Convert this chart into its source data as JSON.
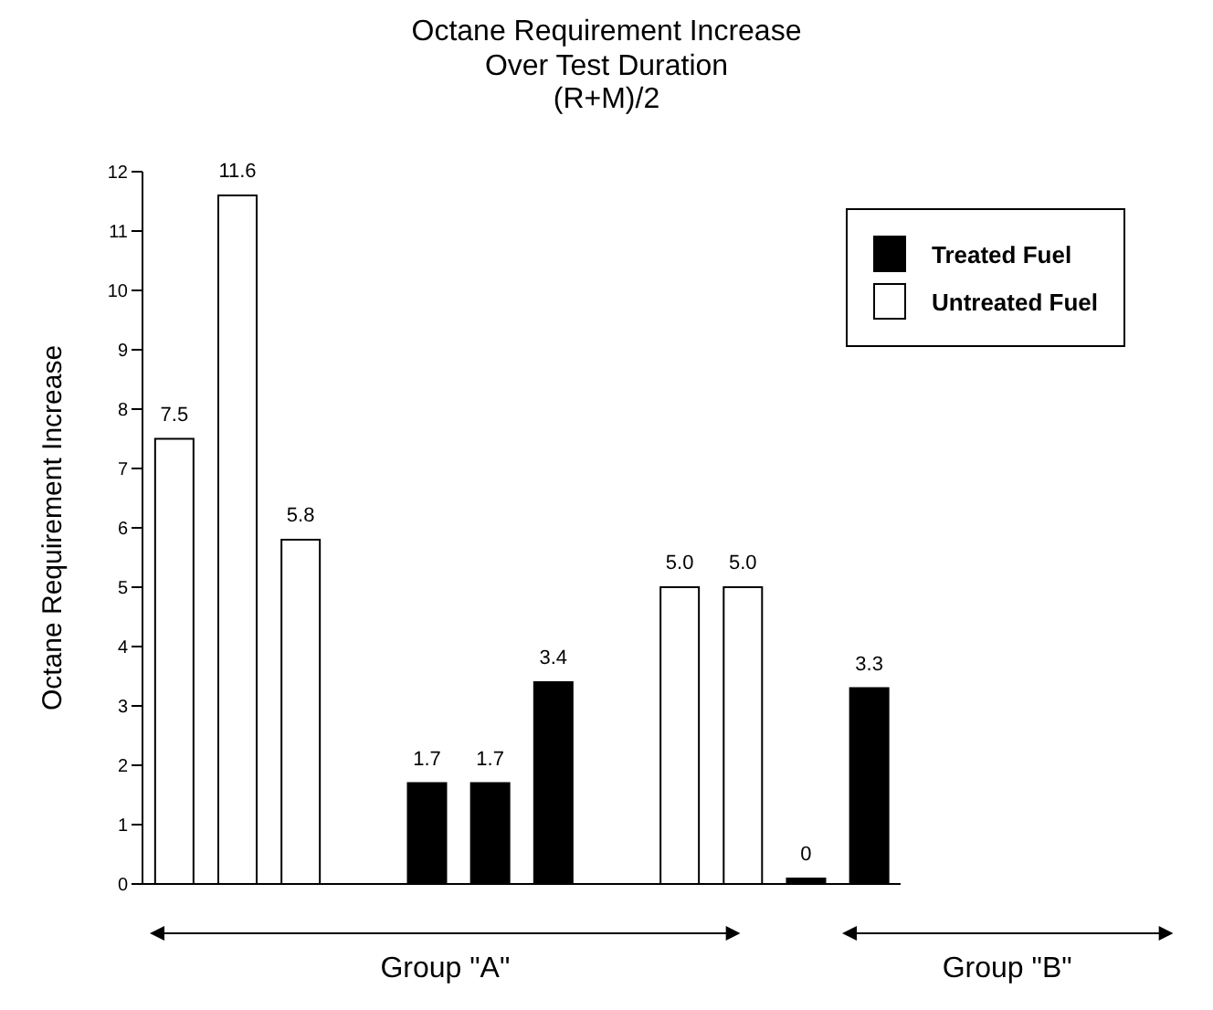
{
  "chart_data": {
    "type": "bar",
    "title": "Octane Requirement Increase Over Test Duration",
    "subtitle": "(R+M)/2",
    "ylabel": "Octane Requirement Increase",
    "categories": [
      null,
      null,
      null,
      null,
      null,
      null,
      null,
      null,
      null,
      null,
      null,
      null
    ],
    "series": [
      {
        "name": "Treated Fuel",
        "color": "#000000",
        "values": [
          null,
          null,
          null,
          null,
          1.7,
          1.7,
          3.4,
          null,
          null,
          null,
          0,
          3.3
        ],
        "value_labels": [
          null,
          null,
          null,
          null,
          "1.7",
          "1.7",
          "3.4",
          null,
          null,
          null,
          "0",
          "3.3"
        ]
      },
      {
        "name": "Untreated Fuel",
        "color": "#ffffff",
        "values": [
          7.5,
          11.6,
          5.8,
          null,
          null,
          null,
          null,
          null,
          5.0,
          5.0,
          null,
          null
        ],
        "value_labels": [
          "7.5",
          "11.6",
          "5.8",
          null,
          null,
          null,
          null,
          null,
          "5.0",
          "5.0",
          null,
          null
        ]
      }
    ],
    "ylim": [
      0,
      12
    ],
    "yticks": [
      0,
      1,
      2,
      3,
      4,
      5,
      6,
      7,
      8,
      9,
      10,
      11,
      12
    ],
    "grid": false,
    "legend": "top right",
    "tick_labels": "y",
    "annotations": [
      "Group \"A\"",
      "Group \"B\""
    ]
  }
}
